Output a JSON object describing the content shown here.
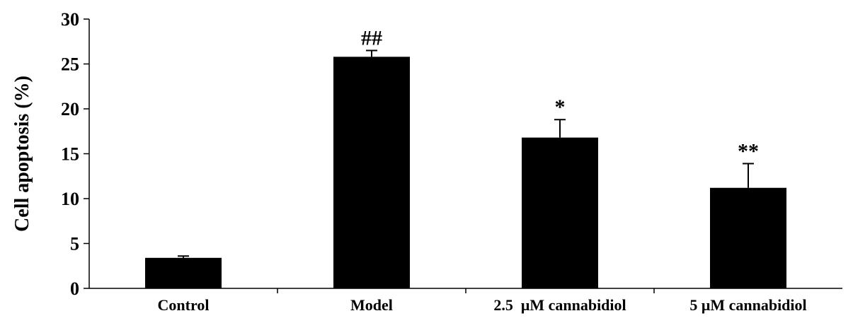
{
  "chart_data": {
    "type": "bar",
    "title": "",
    "xlabel": "",
    "ylabel": "Cell apoptosis (%)",
    "ylim": [
      0,
      30
    ],
    "yticks": [
      0,
      5,
      10,
      15,
      20,
      25,
      30
    ],
    "grid": false,
    "categories": [
      "Control",
      "Model",
      "2.5  μM cannabidiol",
      "5 μM cannabidiol"
    ],
    "values": [
      3.4,
      25.8,
      16.8,
      11.2
    ],
    "errors": [
      0.2,
      0.7,
      2.0,
      2.7
    ],
    "annotations": [
      "",
      "##",
      "*",
      "**"
    ],
    "bar_color": "#000000"
  }
}
